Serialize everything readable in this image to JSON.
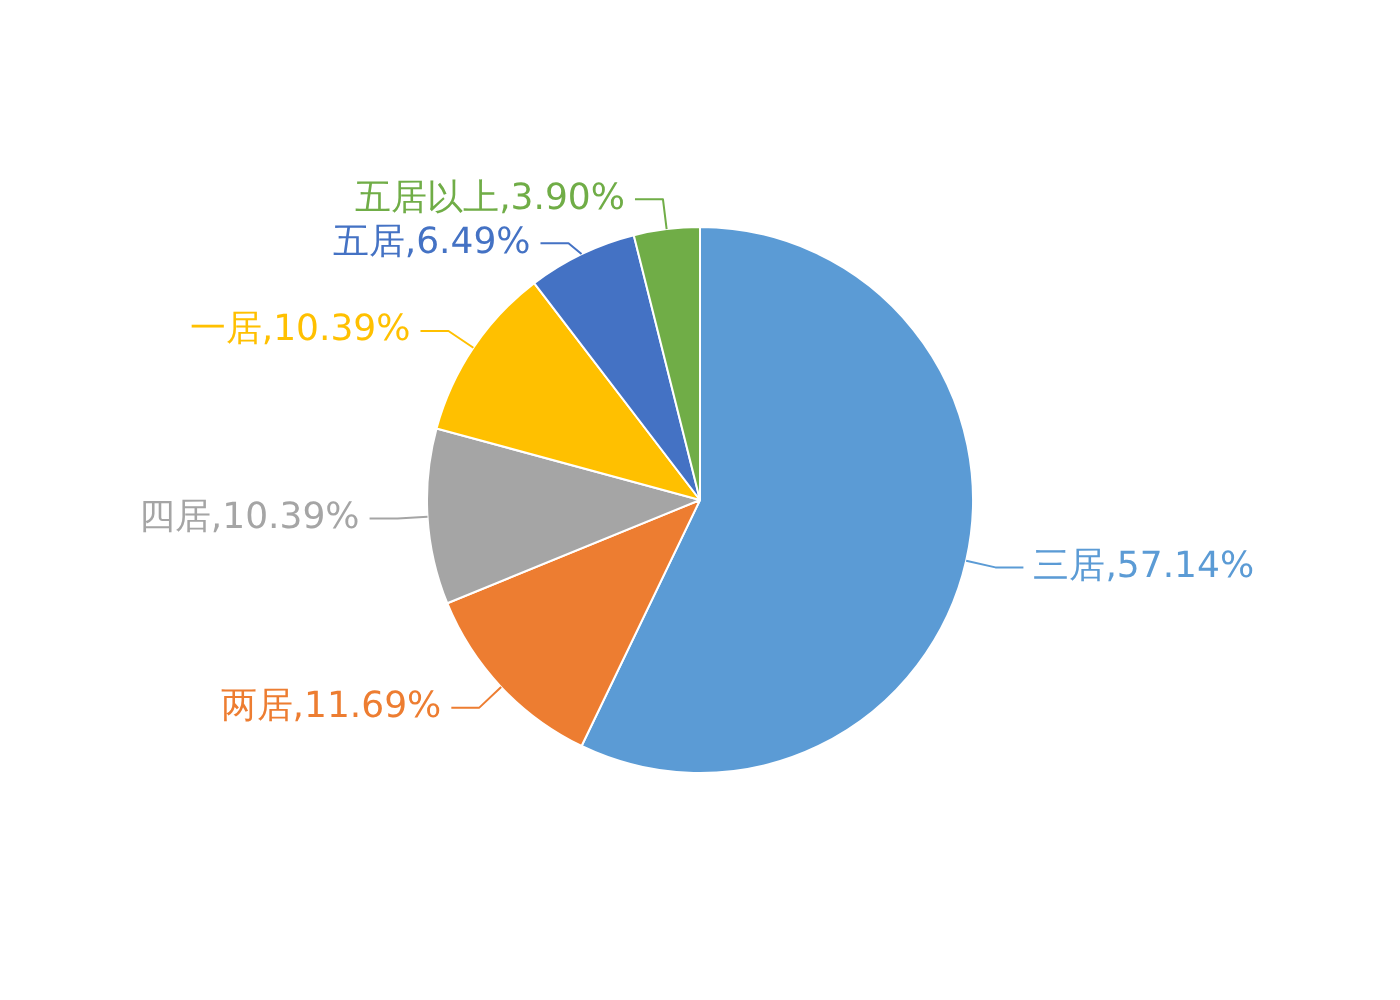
{
  "chart_data": {
    "type": "pie",
    "categories": [
      "三居",
      "两居",
      "四居",
      "一居",
      "五居",
      "五居以上"
    ],
    "values": [
      57.14,
      11.69,
      10.39,
      10.39,
      6.49,
      3.9
    ],
    "colors": [
      "#5b9bd5",
      "#ed7d31",
      "#a5a5a5",
      "#ffc000",
      "#4472c4",
      "#70ad47"
    ],
    "value_labels": [
      "57.14%",
      "11.69%",
      "10.39%",
      "10.39%",
      "6.49%",
      "3.90%"
    ],
    "legend": false
  }
}
